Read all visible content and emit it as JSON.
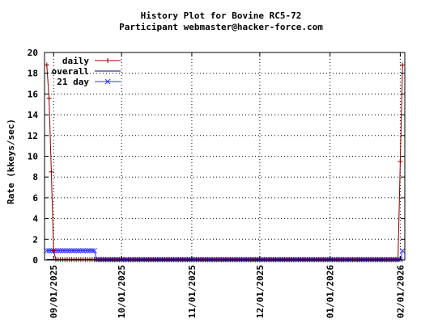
{
  "chart_data": {
    "type": "line",
    "title": "History Plot for Bovine RC5-72",
    "subtitle": "Participant webmaster@hacker-force.com",
    "ylabel": "Rate (kkeys/sec)",
    "xlabel": "",
    "ylim": [
      0,
      20
    ],
    "xlim": [
      "2025-08-28",
      "2026-02-03"
    ],
    "yticks": [
      0,
      2,
      4,
      6,
      8,
      10,
      12,
      14,
      16,
      18,
      20
    ],
    "xticks": [
      "09/01/2025",
      "10/01/2025",
      "11/01/2025",
      "12/01/2025",
      "01/01/2026",
      "02/01/2026"
    ],
    "xtick_dates": [
      "2025-09-01",
      "2025-10-01",
      "2025-11-01",
      "2025-12-01",
      "2026-01-01",
      "2026-02-01"
    ],
    "grid": true,
    "legend_position": "top-left",
    "series": [
      {
        "name": "daily",
        "color": "#8b0000",
        "marker": "plus",
        "x": [
          "2025-08-29",
          "2025-08-30",
          "2025-08-31",
          "2025-09-01",
          "2026-02-01",
          "2026-02-02"
        ],
        "y": [
          18.8,
          15.6,
          8.5,
          0.9,
          9.5,
          18.8
        ]
      },
      {
        "name": "overall",
        "color": "#000080",
        "marker": "none",
        "x": [
          "2025-08-29",
          "2026-02-02"
        ],
        "y": [
          0.05,
          0.05
        ]
      },
      {
        "name": "21 day",
        "color": "#3030ff",
        "marker": "x",
        "x": [
          "2025-08-29",
          "2025-09-19",
          "2025-09-20",
          "2026-02-01",
          "2026-02-02"
        ],
        "y": [
          0.9,
          0.9,
          0.05,
          0.05,
          0.9
        ]
      }
    ]
  }
}
